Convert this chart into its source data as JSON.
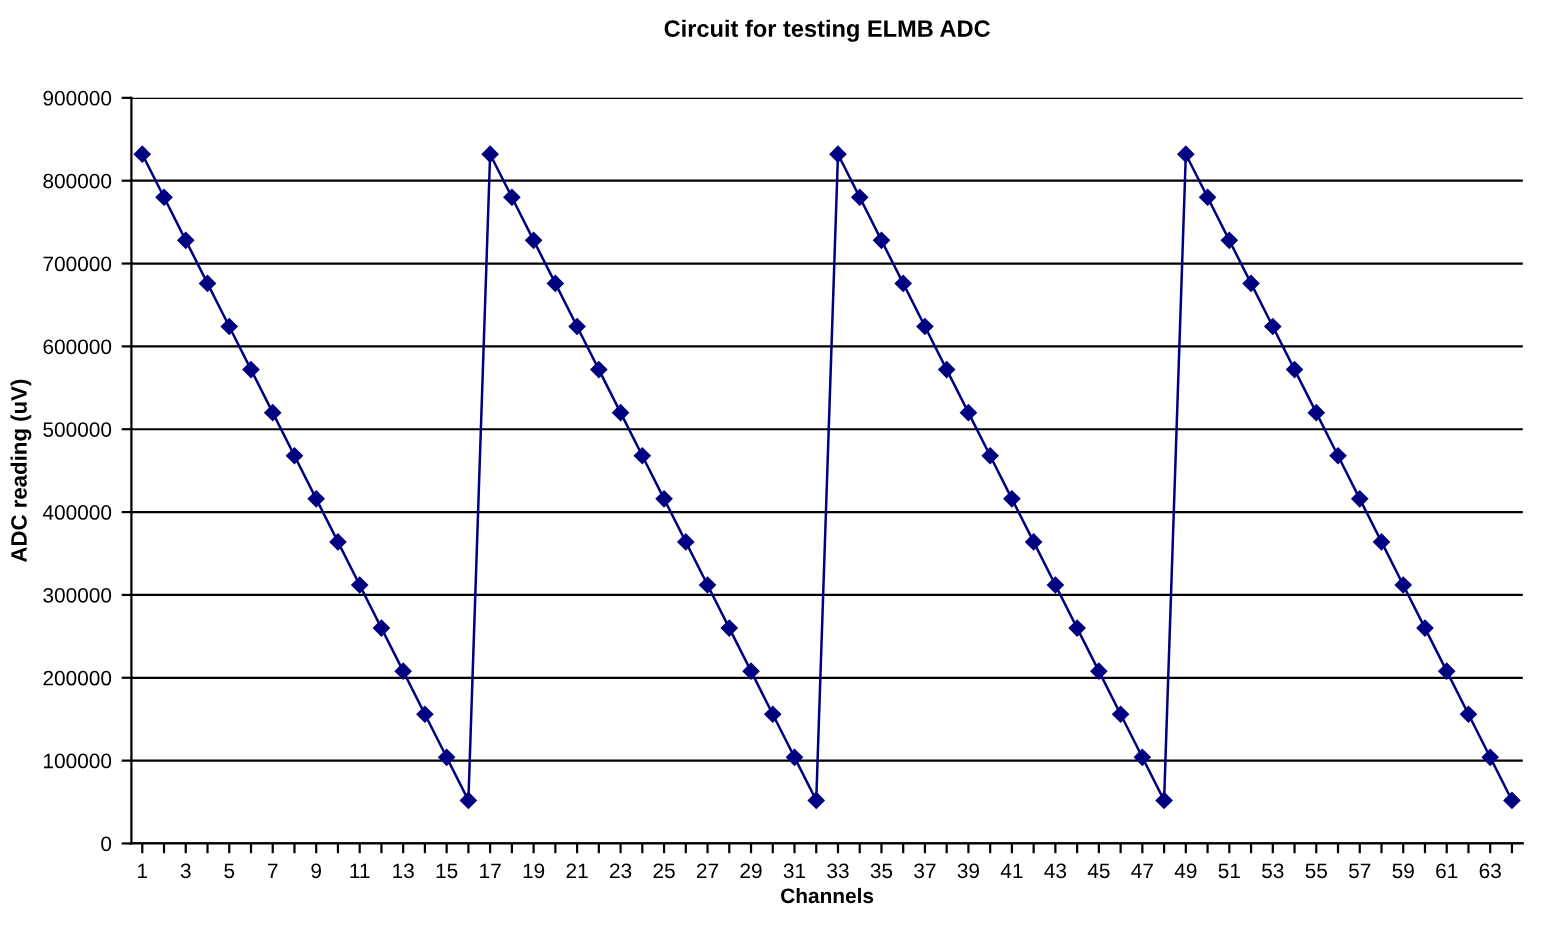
{
  "chart_data": {
    "type": "line",
    "title": "Circuit for testing ELMB ADC",
    "xlabel": "Channels",
    "ylabel": "ADC reading (uV)",
    "categories": [
      "1",
      null,
      "3",
      null,
      "5",
      null,
      "7",
      null,
      "9",
      null,
      "11",
      null,
      "13",
      null,
      "15",
      null,
      "17",
      null,
      "19",
      null,
      "21",
      null,
      "23",
      null,
      "25",
      null,
      "27",
      null,
      "29",
      null,
      "31",
      null,
      "33",
      null,
      "35",
      null,
      "37",
      null,
      "39",
      null,
      "41",
      null,
      "43",
      null,
      "45",
      null,
      "47",
      null,
      "49",
      null,
      "51",
      null,
      "53",
      null,
      "55",
      null,
      "57",
      null,
      "59",
      null,
      "61",
      null,
      "63",
      null
    ],
    "series": [
      {
        "color": "#000080",
        "values": [
          832000,
          780000,
          728000,
          676000,
          624000,
          572000,
          520000,
          468000,
          416000,
          364000,
          312000,
          260000,
          208000,
          156000,
          104000,
          52000,
          832000,
          780000,
          728000,
          676000,
          624000,
          572000,
          520000,
          468000,
          416000,
          364000,
          312000,
          260000,
          208000,
          156000,
          104000,
          52000,
          832000,
          780000,
          728000,
          676000,
          624000,
          572000,
          520000,
          468000,
          416000,
          364000,
          312000,
          260000,
          208000,
          156000,
          104000,
          52000,
          832000,
          780000,
          728000,
          676000,
          624000,
          572000,
          520000,
          468000,
          416000,
          364000,
          312000,
          260000,
          208000,
          156000,
          104000,
          52000
        ]
      }
    ],
    "ylim": [
      0,
      900000
    ],
    "yticks": [
      0,
      100000,
      200000,
      300000,
      400000,
      500000,
      600000,
      700000,
      800000,
      900000
    ],
    "grid": "y",
    "marker": "diamond",
    "line_style": "solid"
  }
}
